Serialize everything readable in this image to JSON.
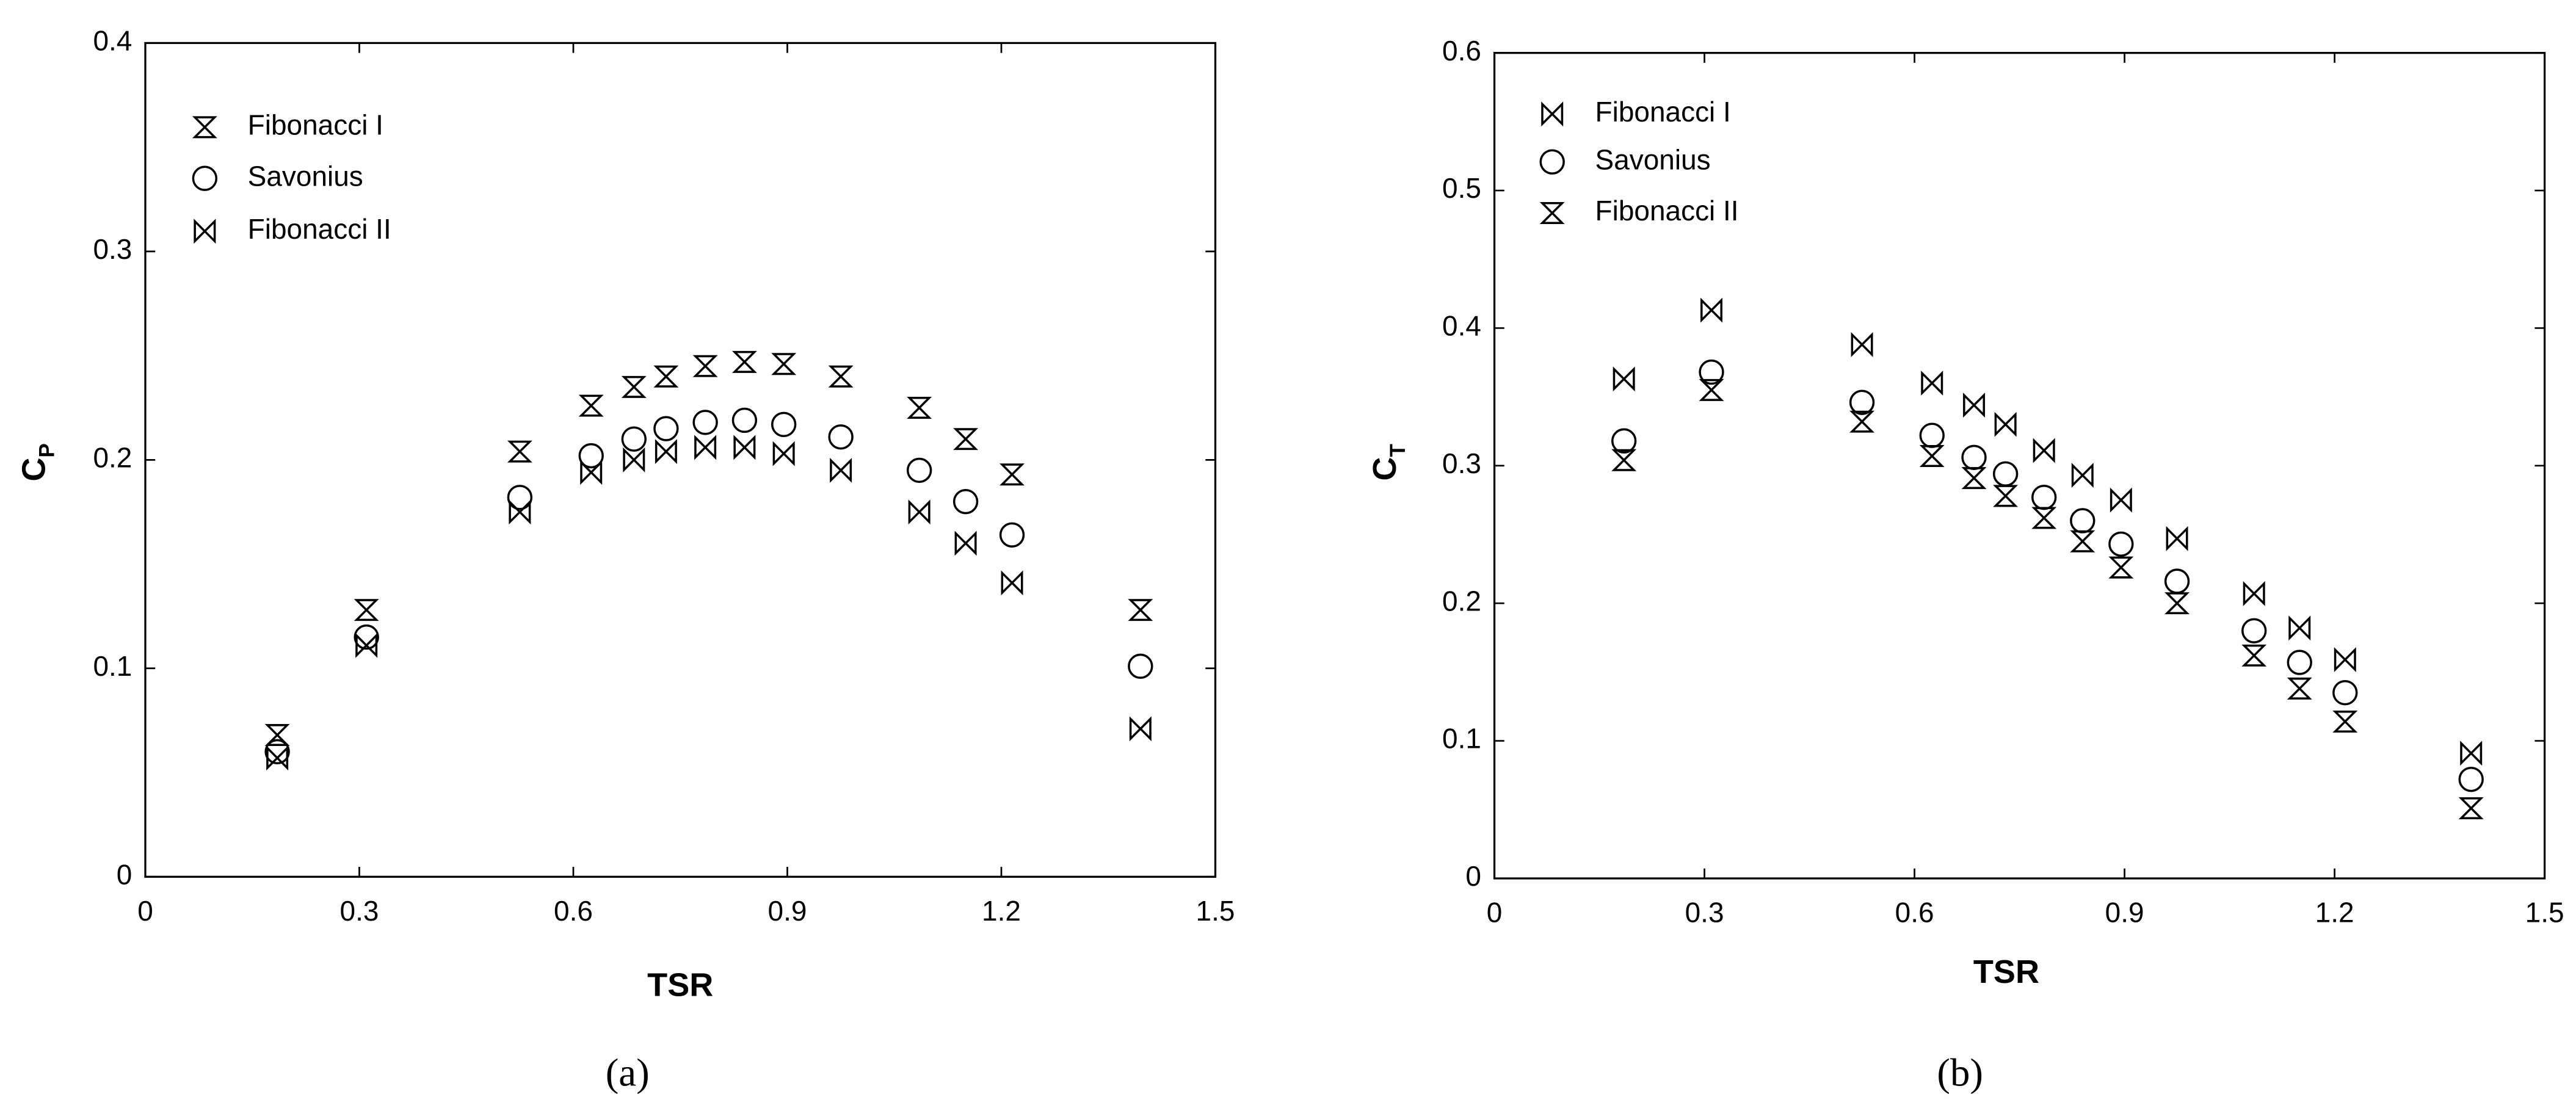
{
  "chart_data": [
    {
      "type": "scatter",
      "caption": "(a)",
      "xlabel": "TSR",
      "ylabel": [
        "C",
        "P"
      ],
      "x": [
        0.185,
        0.31,
        0.525,
        0.625,
        0.685,
        0.73,
        0.785,
        0.84,
        0.895,
        0.975,
        1.085,
        1.15,
        1.215,
        1.395
      ],
      "series": [
        {
          "name": "Fibonacci I",
          "marker": "hourglass",
          "color": "#000000",
          "values": [
            0.068,
            0.128,
            0.204,
            0.226,
            0.235,
            0.24,
            0.245,
            0.247,
            0.246,
            0.24,
            0.225,
            0.21,
            0.193,
            0.128
          ]
        },
        {
          "name": "Savonius",
          "marker": "circle",
          "color": "#000000",
          "values": [
            0.06,
            0.115,
            0.182,
            0.202,
            0.21,
            0.215,
            0.218,
            0.219,
            0.217,
            0.211,
            0.195,
            0.18,
            0.164,
            0.101
          ]
        },
        {
          "name": "Fibonacci II",
          "marker": "bowtie",
          "color": "#000000",
          "values": [
            0.057,
            0.111,
            0.175,
            0.194,
            0.2,
            0.204,
            0.206,
            0.206,
            0.203,
            0.195,
            0.175,
            0.16,
            0.141,
            0.071
          ]
        }
      ],
      "xlim": [
        0,
        1.5
      ],
      "xticks": [
        0,
        0.3,
        0.6,
        0.9,
        1.2,
        1.5
      ],
      "ylim": [
        0,
        0.4
      ],
      "yticks": [
        0,
        0.1,
        0.2,
        0.3,
        0.4
      ],
      "legend": "upper left"
    },
    {
      "type": "scatter",
      "caption": "(b)",
      "xlabel": "TSR",
      "ylabel": [
        "C",
        "T"
      ],
      "x": [
        0.185,
        0.31,
        0.525,
        0.625,
        0.685,
        0.73,
        0.785,
        0.84,
        0.895,
        0.975,
        1.085,
        1.15,
        1.215,
        1.395
      ],
      "series": [
        {
          "name": "Fibonacci I",
          "marker": "bowtie",
          "color": "#000000",
          "values": [
            0.363,
            0.413,
            0.388,
            0.36,
            0.344,
            0.33,
            0.311,
            0.293,
            0.275,
            0.247,
            0.207,
            0.182,
            0.159,
            0.091
          ]
        },
        {
          "name": "Savonius",
          "marker": "circle",
          "color": "#000000",
          "values": [
            0.318,
            0.368,
            0.346,
            0.322,
            0.306,
            0.294,
            0.277,
            0.26,
            0.243,
            0.216,
            0.18,
            0.157,
            0.135,
            0.072
          ]
        },
        {
          "name": "Fibonacci II",
          "marker": "hourglass",
          "color": "#000000",
          "values": [
            0.304,
            0.355,
            0.332,
            0.307,
            0.291,
            0.278,
            0.262,
            0.245,
            0.226,
            0.2,
            0.162,
            0.138,
            0.114,
            0.051
          ]
        }
      ],
      "xlim": [
        0,
        1.5
      ],
      "xticks": [
        0,
        0.3,
        0.6,
        0.9,
        1.2,
        1.5
      ],
      "ylim": [
        0,
        0.6
      ],
      "yticks": [
        0,
        0.1,
        0.2,
        0.3,
        0.4,
        0.5,
        0.6
      ],
      "legend": "upper left"
    }
  ]
}
